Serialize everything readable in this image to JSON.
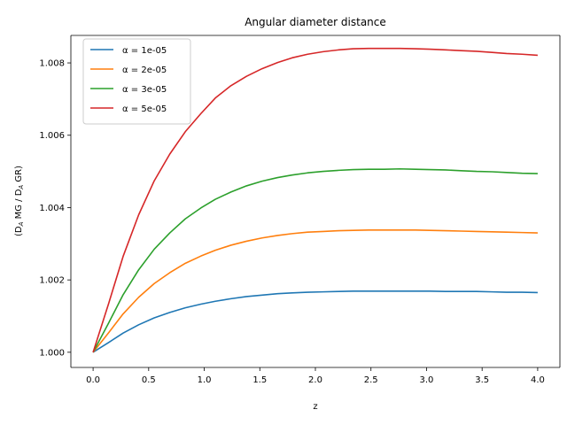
{
  "chart_data": {
    "type": "line",
    "title": "Angular diameter distance",
    "xlabel": "z",
    "ylabel": "(D_A MG / D_A GR)",
    "xlim": [
      -0.2,
      4.2
    ],
    "ylim": [
      0.99958,
      1.00876
    ],
    "xticks": [
      0.0,
      0.5,
      1.0,
      1.5,
      2.0,
      2.5,
      3.0,
      3.5,
      4.0
    ],
    "xtick_labels": [
      "0.0",
      "0.5",
      "1.0",
      "1.5",
      "2.0",
      "2.5",
      "3.0",
      "3.5",
      "4.0"
    ],
    "yticks": [
      1.0,
      1.002,
      1.004,
      1.006,
      1.008
    ],
    "ytick_labels": [
      "1.000",
      "1.002",
      "1.004",
      "1.006",
      "1.008"
    ],
    "grid": false,
    "legend": "upper-left",
    "x": [
      0.0,
      0.14,
      0.27,
      0.41,
      0.55,
      0.69,
      0.83,
      0.97,
      1.1,
      1.24,
      1.38,
      1.52,
      1.66,
      1.79,
      1.93,
      2.07,
      2.21,
      2.34,
      2.48,
      2.62,
      2.76,
      2.9,
      3.03,
      3.17,
      3.31,
      3.45,
      3.59,
      3.72,
      3.86,
      4.0
    ],
    "series": [
      {
        "name": "α = 1e-05",
        "color": "#1f77b4",
        "values": [
          1.0,
          1.00027,
          1.00053,
          1.00076,
          1.00095,
          1.0011,
          1.00123,
          1.00133,
          1.00141,
          1.00148,
          1.00154,
          1.00158,
          1.00162,
          1.00164,
          1.00166,
          1.00167,
          1.00168,
          1.00169,
          1.00169,
          1.00169,
          1.00169,
          1.00169,
          1.00169,
          1.00168,
          1.00168,
          1.00168,
          1.00167,
          1.00166,
          1.00166,
          1.00165
        ]
      },
      {
        "name": "α = 2e-05",
        "color": "#ff7f0e",
        "values": [
          1.0,
          1.00054,
          1.00106,
          1.00152,
          1.0019,
          1.0022,
          1.00246,
          1.00266,
          1.00282,
          1.00296,
          1.00307,
          1.00316,
          1.00323,
          1.00328,
          1.00332,
          1.00334,
          1.00336,
          1.00337,
          1.00338,
          1.00338,
          1.00338,
          1.00338,
          1.00337,
          1.00336,
          1.00335,
          1.00334,
          1.00333,
          1.00332,
          1.00331,
          1.0033
        ]
      },
      {
        "name": "α = 3e-05",
        "color": "#2ca02c",
        "values": [
          1.0,
          1.00081,
          1.00159,
          1.00228,
          1.00285,
          1.0033,
          1.00369,
          1.00399,
          1.00423,
          1.00443,
          1.0046,
          1.00473,
          1.00483,
          1.0049,
          1.00496,
          1.005,
          1.00503,
          1.00505,
          1.00506,
          1.00506,
          1.00507,
          1.00506,
          1.00505,
          1.00504,
          1.00502,
          1.005,
          1.00499,
          1.00497,
          1.00495,
          1.00494
        ]
      },
      {
        "name": "α = 5e-05",
        "color": "#d62728",
        "values": [
          1.0,
          1.00135,
          1.00265,
          1.0038,
          1.00474,
          1.00548,
          1.0061,
          1.0066,
          1.00703,
          1.00737,
          1.00763,
          1.00784,
          1.00801,
          1.00814,
          1.00824,
          1.00831,
          1.00836,
          1.00839,
          1.0084,
          1.0084,
          1.0084,
          1.00839,
          1.00838,
          1.00836,
          1.00834,
          1.00832,
          1.00829,
          1.00826,
          1.00824,
          1.00821
        ]
      }
    ]
  }
}
